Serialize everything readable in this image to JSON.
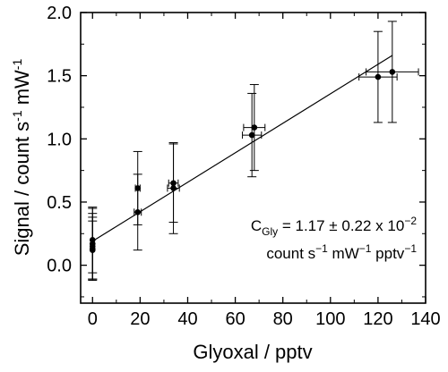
{
  "chart_data": {
    "type": "scatter",
    "title": "",
    "xlabel": "Glyoxal / pptv",
    "ylabel": "Signal / count s-1 mW-1",
    "ylabel_parts": [
      "Signal / count s",
      "-1",
      " mW",
      "-1"
    ],
    "xlim": [
      -5,
      140
    ],
    "ylim": [
      -0.3,
      2.0
    ],
    "x_ticks": [
      0,
      20,
      40,
      60,
      80,
      100,
      120,
      140
    ],
    "y_ticks": [
      0.0,
      0.5,
      1.0,
      1.5,
      2.0
    ],
    "y_tick_labels": [
      "0.0",
      "0.5",
      "1.0",
      "1.5",
      "2.0"
    ],
    "grid": false,
    "series": [
      {
        "points": [
          {
            "x": 0,
            "y": 0.2,
            "yerr": 0.26,
            "xerr": 0
          },
          {
            "x": 0,
            "y": 0.17,
            "yerr": 0.28,
            "xerr": 0
          },
          {
            "x": 0,
            "y": 0.15,
            "yerr": 0.26,
            "xerr": 0
          },
          {
            "x": 0,
            "y": 0.13,
            "yerr": 0.25,
            "xerr": 0
          },
          {
            "x": 0,
            "y": 0.12,
            "yerr": 0.23,
            "xerr": 0
          },
          {
            "x": 19,
            "y": 0.61,
            "yerr": 0.29,
            "xerr": 1
          },
          {
            "x": 19,
            "y": 0.42,
            "yerr": 0.3,
            "xerr": 1.5
          },
          {
            "x": 34,
            "y": 0.65,
            "yerr": 0.31,
            "xerr": 2
          },
          {
            "x": 34,
            "y": 0.61,
            "yerr": 0.36,
            "xerr": 2.5
          },
          {
            "x": 67,
            "y": 1.03,
            "yerr": 0.33,
            "xerr": 4
          },
          {
            "x": 68,
            "y": 1.09,
            "yerr": 0.34,
            "xerr": 4.5
          },
          {
            "x": 120,
            "y": 1.49,
            "yerr": 0.36,
            "xerr": 8
          },
          {
            "x": 126,
            "y": 1.53,
            "yerr": 0.4,
            "xerr": 11
          }
        ]
      }
    ],
    "fit_line": {
      "x": [
        0,
        126
      ],
      "y": [
        0.19,
        1.66
      ]
    },
    "annotation": {
      "line1_base": "C",
      "line1_sub": "Gly",
      "line1_rest": " = 1.17 ± 0.22 x 10",
      "line1_sup": "−2",
      "line2_parts": [
        "count s",
        "−1",
        " mW",
        "−1",
        " pptv",
        "−1"
      ]
    }
  }
}
